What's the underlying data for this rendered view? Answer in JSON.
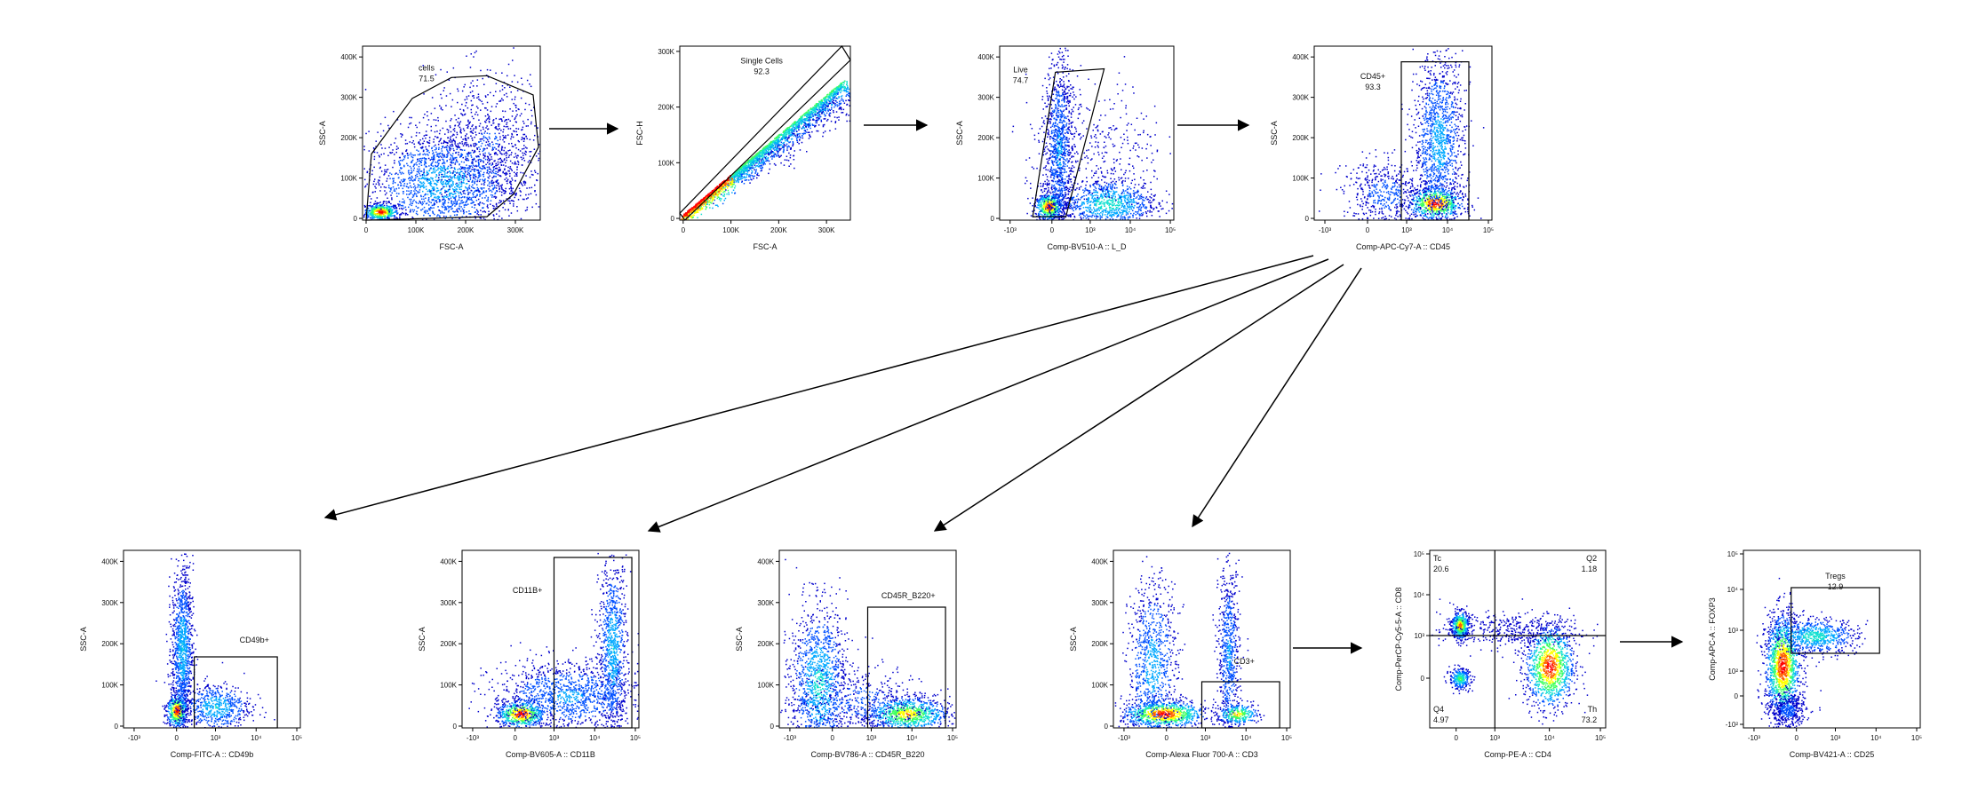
{
  "figure": {
    "panels": [
      {
        "id": "cells",
        "xlabel": "FSC-A",
        "ylabel": "SSC-A",
        "xaxis": "lin",
        "yaxis": "lin",
        "xticks": [
          "0",
          "100K",
          "200K",
          "300K"
        ],
        "yticks": [
          "0",
          "100K",
          "200K",
          "300K",
          "400K"
        ],
        "gates": [
          {
            "name": "cells",
            "value": "71.5"
          }
        ]
      },
      {
        "id": "single",
        "xlabel": "FSC-A",
        "ylabel": "FSC-H",
        "xaxis": "lin",
        "yaxis": "lin",
        "xticks": [
          "0",
          "100K",
          "200K",
          "300K"
        ],
        "yticks": [
          "0",
          "100K",
          "200K",
          "300K"
        ],
        "gates": [
          {
            "name": "Single Cells",
            "value": "92.3"
          }
        ]
      },
      {
        "id": "live",
        "xlabel": "Comp-BV510-A :: L_D",
        "ylabel": "SSC-A",
        "xaxis": "log",
        "yaxis": "lin",
        "xticks": [
          "-10³",
          "0",
          "10³",
          "10⁴",
          "10⁵"
        ],
        "yticks": [
          "0",
          "100K",
          "200K",
          "300K",
          "400K"
        ],
        "gates": [
          {
            "name": "Live",
            "value": "74.7"
          }
        ]
      },
      {
        "id": "cd45",
        "xlabel": "Comp-APC-Cy7-A :: CD45",
        "ylabel": "SSC-A",
        "xaxis": "log",
        "yaxis": "lin",
        "xticks": [
          "-10³",
          "0",
          "10³",
          "10⁴",
          "10⁵"
        ],
        "yticks": [
          "0",
          "100K",
          "200K",
          "300K",
          "400K"
        ],
        "gates": [
          {
            "name": "CD45+",
            "value": "93.3"
          }
        ]
      },
      {
        "id": "cd49b",
        "xlabel": "Comp-FITC-A :: CD49b",
        "ylabel": "SSC-A",
        "xaxis": "log",
        "yaxis": "lin",
        "xticks": [
          "-10³",
          "0",
          "10³",
          "10⁴",
          "10⁵"
        ],
        "yticks": [
          "0",
          "100K",
          "200K",
          "300K",
          "400K"
        ],
        "gates": [
          {
            "name": "CD49b+",
            "value": ""
          }
        ]
      },
      {
        "id": "cd11b",
        "xlabel": "Comp-BV605-A :: CD11B",
        "ylabel": "SSC-A",
        "xaxis": "log",
        "yaxis": "lin",
        "xticks": [
          "-10³",
          "0",
          "10³",
          "10⁴",
          "10⁵"
        ],
        "yticks": [
          "0",
          "100K",
          "200K",
          "300K",
          "400K"
        ],
        "gates": [
          {
            "name": "CD11B+",
            "value": ""
          }
        ]
      },
      {
        "id": "b220",
        "xlabel": "Comp-BV786-A :: CD45R_B220",
        "ylabel": "SSC-A",
        "xaxis": "log",
        "yaxis": "lin",
        "xticks": [
          "-10³",
          "0",
          "10³",
          "10⁴",
          "10⁵"
        ],
        "yticks": [
          "0",
          "100K",
          "200K",
          "300K",
          "400K"
        ],
        "gates": [
          {
            "name": "CD45R_B220+",
            "value": ""
          }
        ]
      },
      {
        "id": "cd3",
        "xlabel": "Comp-Alexa Fluor 700-A :: CD3",
        "ylabel": "SSC-A",
        "xaxis": "log",
        "yaxis": "lin",
        "xticks": [
          "-10³",
          "0",
          "10³",
          "10⁴",
          "10⁵"
        ],
        "yticks": [
          "0",
          "100K",
          "200K",
          "300K",
          "400K"
        ],
        "gates": [
          {
            "name": "CD3+",
            "value": ""
          }
        ]
      },
      {
        "id": "cd4cd8",
        "xlabel": "Comp-PE-A :: CD4",
        "ylabel": "Comp-PerCP-Cy5-5-A :: CD8",
        "xaxis": "log",
        "yaxis": "log",
        "xticks": [
          "0",
          "10³",
          "10⁴",
          "10⁵"
        ],
        "yticks": [
          "0",
          "10³",
          "10⁴",
          "10⁵"
        ],
        "gates": [
          {
            "name": "Tc",
            "value": "20.6"
          },
          {
            "name": "Q2",
            "value": "1.18"
          },
          {
            "name": "Q4",
            "value": "4.97"
          },
          {
            "name": "Th",
            "value": "73.2"
          }
        ]
      },
      {
        "id": "treg",
        "xlabel": "Comp-BV421-A :: CD25",
        "ylabel": "Comp-APC-A :: FOXP3",
        "xaxis": "log",
        "yaxis": "log",
        "xticks": [
          "-10³",
          "0",
          "10³",
          "10⁴",
          "10⁵"
        ],
        "yticks": [
          "-10²",
          "0",
          "10²",
          "10³",
          "10⁴",
          "10⁵"
        ],
        "gates": [
          {
            "name": "Tregs",
            "value": "12.9"
          }
        ]
      }
    ],
    "colors": {
      "line": "#000000",
      "ink": "#111111",
      "density": [
        "#0000cc",
        "#0050ff",
        "#00a8ff",
        "#10e0d0",
        "#40ff60",
        "#ffff00",
        "#ff6000",
        "#ff0000"
      ]
    }
  }
}
